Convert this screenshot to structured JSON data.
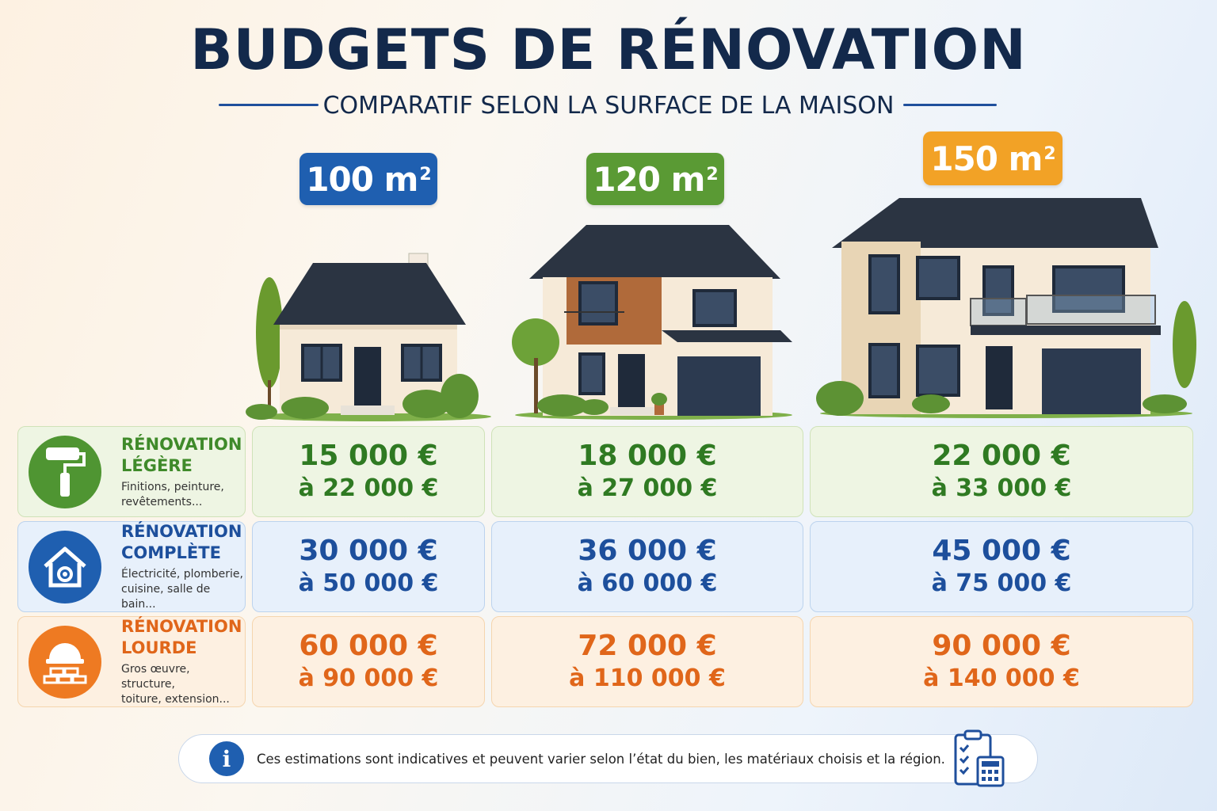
{
  "title": "BUDGETS DE RÉNOVATION",
  "subtitle": "COMPARATIF SELON LA SURFACE DE LA MAISON",
  "sizes": [
    {
      "label": "100 m",
      "unit": "2",
      "color": "#1f5fb0"
    },
    {
      "label": "120 m",
      "unit": "2",
      "color": "#5a9a34"
    },
    {
      "label": "150 m",
      "unit": "2",
      "color": "#f2a226"
    }
  ],
  "rows": [
    {
      "name_1": "RÉNOVATION",
      "name_2": "LÉGÈRE",
      "desc_1": "Finitions, peinture,",
      "desc_2": "revêtements...",
      "icon": "paint-roller-icon",
      "color": "#3f8a2a",
      "values": [
        {
          "from": "15 000 €",
          "to": "à 22 000 €"
        },
        {
          "from": "18 000 €",
          "to": "à 27 000 €"
        },
        {
          "from": "22 000 €",
          "to": "à 33 000 €"
        }
      ]
    },
    {
      "name_1": "RÉNOVATION",
      "name_2": "COMPLÈTE",
      "desc_1": "Électricité, plomberie,",
      "desc_2": "cuisine, salle de bain...",
      "icon": "house-gear-icon",
      "color": "#1d4f9c",
      "values": [
        {
          "from": "30 000 €",
          "to": "à 50 000 €"
        },
        {
          "from": "36 000 €",
          "to": "à 60 000 €"
        },
        {
          "from": "45 000 €",
          "to": "à 75 000 €"
        }
      ]
    },
    {
      "name_1": "RÉNOVATION",
      "name_2": "LOURDE",
      "desc_1": "Gros œuvre, structure,",
      "desc_2": "toiture, extension...",
      "icon": "hard-hat-bricks-icon",
      "color": "#e0661a",
      "values": [
        {
          "from": "60 000 €",
          "to": "à 90 000 €"
        },
        {
          "from": "72 000 €",
          "to": "à 110 000 €"
        },
        {
          "from": "90 000 €",
          "to": "à 140 000 €"
        }
      ]
    }
  ],
  "note": "Ces estimations sont indicatives et peuvent varier selon l’état du bien, les matériaux choisis et la région.",
  "note_icon": "info-icon",
  "checklist_icon": "clipboard-calculator-icon"
}
